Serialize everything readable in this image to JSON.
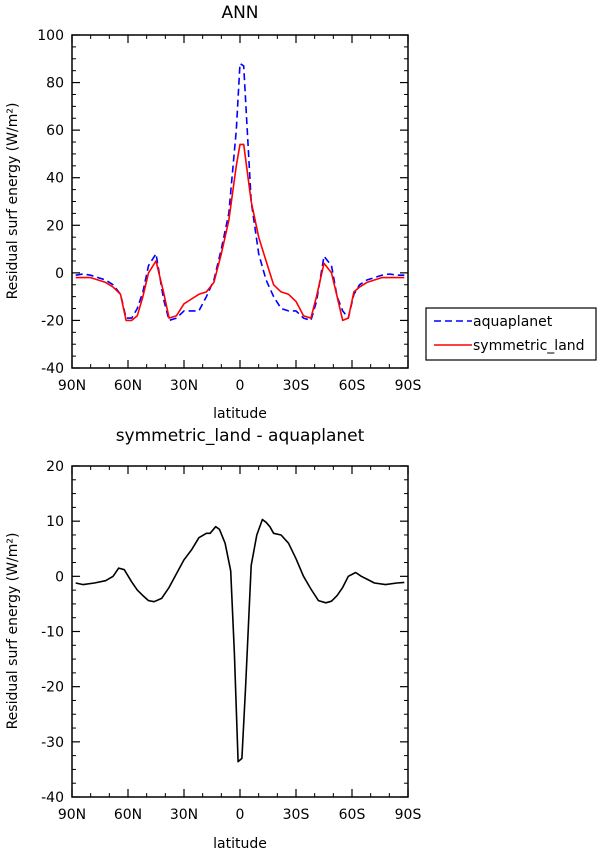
{
  "chart_data": [
    {
      "type": "line",
      "title": "ANN",
      "xlabel": "latitude",
      "ylabel": "Residual surf energy (W/m²)",
      "xlim": [
        -90,
        90
      ],
      "ylim": [
        -40,
        100
      ],
      "x_ticks": [
        -90,
        -60,
        -30,
        0,
        30,
        60,
        90
      ],
      "x_tick_labels": [
        "90N",
        "60N",
        "30N",
        "0",
        "30S",
        "60S",
        "90S"
      ],
      "y_ticks": [
        -40,
        -20,
        0,
        20,
        40,
        60,
        80,
        100
      ],
      "y_tick_labels": [
        "-40",
        "-20",
        "0",
        "20",
        "40",
        "60",
        "80",
        "100"
      ],
      "grid": false,
      "legend_position": "right",
      "series": [
        {
          "name": "aquaplanet",
          "color": "#0000ff",
          "dash": "dashed",
          "x": [
            -88,
            -84,
            -80,
            -76,
            -72,
            -68,
            -64,
            -61,
            -58,
            -55,
            -52,
            -49,
            -45,
            -41,
            -38,
            -34,
            -30,
            -26,
            -22,
            -18,
            -14,
            -10,
            -6,
            -2,
            0,
            2,
            6,
            10,
            14,
            18,
            22,
            26,
            30,
            34,
            38,
            41,
            45,
            49,
            52,
            55,
            58,
            61,
            64,
            68,
            72,
            76,
            80,
            84,
            88
          ],
          "y": [
            -1,
            -0.5,
            -1,
            -2,
            -3,
            -5,
            -9,
            -19,
            -19,
            -15,
            -8,
            3,
            8,
            -11,
            -20,
            -19,
            -16,
            -16,
            -16,
            -10,
            -3,
            10,
            25,
            60,
            88,
            87,
            30,
            8,
            -3,
            -10,
            -15,
            -16,
            -16,
            -19,
            -20,
            -12,
            7,
            3,
            -10,
            -16,
            -19,
            -9,
            -5,
            -3,
            -2,
            -1,
            -0.5,
            -1,
            -1
          ]
        },
        {
          "name": "symmetric_land",
          "color": "#ff0000",
          "dash": "solid",
          "x": [
            -88,
            -84,
            -80,
            -76,
            -72,
            -68,
            -64,
            -61,
            -58,
            -55,
            -52,
            -49,
            -45,
            -41,
            -38,
            -34,
            -30,
            -26,
            -22,
            -18,
            -14,
            -10,
            -6,
            -2,
            0,
            2,
            6,
            10,
            14,
            18,
            22,
            26,
            30,
            34,
            38,
            41,
            45,
            49,
            52,
            55,
            58,
            61,
            64,
            68,
            72,
            76,
            80,
            84,
            88
          ],
          "y": [
            -2,
            -2,
            -2,
            -3,
            -4,
            -6,
            -9,
            -20,
            -20,
            -18,
            -10,
            0,
            5,
            -8,
            -19,
            -18,
            -13,
            -11,
            -9,
            -8,
            -4,
            8,
            22,
            45,
            54,
            54,
            30,
            15,
            5,
            -5,
            -8,
            -9,
            -12,
            -18,
            -19,
            -10,
            4,
            0,
            -10,
            -20,
            -19,
            -8,
            -6,
            -4,
            -3,
            -2,
            -2,
            -2,
            -2
          ]
        }
      ]
    },
    {
      "type": "line",
      "title": "symmetric_land - aquaplanet",
      "xlabel": "latitude",
      "ylabel": "Residual surf energy (W/m²)",
      "xlim": [
        -90,
        90
      ],
      "ylim": [
        -40,
        20
      ],
      "x_ticks": [
        -90,
        -60,
        -30,
        0,
        30,
        60,
        90
      ],
      "x_tick_labels": [
        "90N",
        "60N",
        "30N",
        "0",
        "30S",
        "60S",
        "90S"
      ],
      "y_ticks": [
        -40,
        -30,
        -20,
        -10,
        0,
        10,
        20
      ],
      "y_tick_labels": [
        "-40",
        "-30",
        "-20",
        "-10",
        "0",
        "10",
        "20"
      ],
      "grid": false,
      "series": [
        {
          "color": "#000000",
          "dash": "solid",
          "x": [
            -88,
            -84,
            -78,
            -72,
            -68,
            -65,
            -62,
            -58,
            -55,
            -52,
            -49,
            -46,
            -42,
            -38,
            -34,
            -30,
            -26,
            -22,
            -18,
            -16,
            -13,
            -11,
            -8,
            -5,
            -3,
            -1,
            1,
            3,
            6,
            9,
            12,
            14,
            16,
            18,
            22,
            26,
            30,
            34,
            38,
            42,
            46,
            49,
            52,
            55,
            58,
            62,
            65,
            68,
            72,
            78,
            84,
            88
          ],
          "y": [
            -1.2,
            -1.5,
            -1.2,
            -0.8,
            0,
            1.5,
            1.2,
            -1,
            -2.5,
            -3.5,
            -4.4,
            -4.6,
            -4,
            -2,
            0.5,
            3,
            4.8,
            7,
            7.8,
            7.8,
            9,
            8.5,
            6,
            1,
            -14,
            -33.6,
            -33,
            -20,
            2,
            7.5,
            10.3,
            9.8,
            9,
            7.8,
            7.5,
            6,
            3.2,
            0,
            -2.3,
            -4.4,
            -4.8,
            -4.5,
            -3.5,
            -2,
            0,
            0.7,
            0,
            -0.5,
            -1.2,
            -1.5,
            -1.2,
            -1.1
          ]
        }
      ]
    }
  ]
}
